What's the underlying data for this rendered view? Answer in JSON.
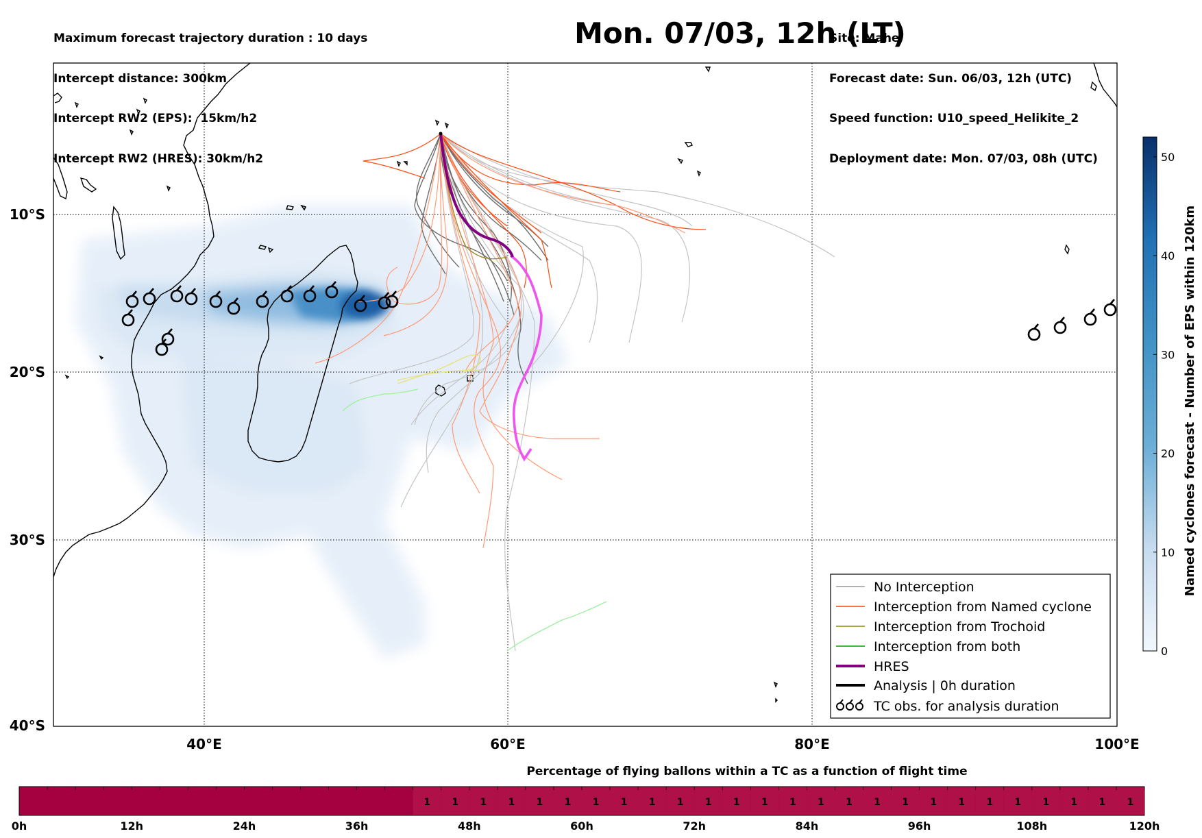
{
  "header_left": [
    "Maximum forecast trajectory duration : 10 days",
    "Intercept distance: 300km",
    "Intercept RW2 (EPS):  15km/h2",
    "Intercept RW2 (HRES): 30km/h2"
  ],
  "title": "Mon. 07/03, 12h (LT)",
  "header_right": [
    "Site: Mahe",
    "Forecast date: Sun. 06/03, 12h (UTC)",
    "Speed function: U10_speed_Helikite_2",
    "Deployment date: Mon. 07/03, 08h (UTC)"
  ],
  "map": {
    "lon_ticks": [
      "40°E",
      "60°E",
      "80°E",
      "100°E"
    ],
    "lat_ticks": [
      "10°S",
      "20°S",
      "30°S",
      "40°S"
    ],
    "grid": "dotted"
  },
  "legend": {
    "placement": "bottom-right",
    "items": [
      {
        "label": "No Interception",
        "color": "#9a9a9a"
      },
      {
        "label": "Interception from Named cyclone",
        "color": "#ff4500"
      },
      {
        "label": "Interception from Trochoid",
        "color": "#8b8b00"
      },
      {
        "label": "Interception from both",
        "color": "#00a000"
      },
      {
        "label": "HRES",
        "color": "#800080"
      },
      {
        "label": "Analysis | 0h duration",
        "color": "#000000"
      },
      {
        "label": "TC obs. for analysis duration",
        "icon": "cyclone-symbol-icon"
      }
    ]
  },
  "colorbar": {
    "label": "Named cyclones forecast - Number of EPS within 120km",
    "ticks": [
      "0",
      "10",
      "20",
      "30",
      "40",
      "50"
    ],
    "range": [
      0,
      52
    ],
    "colors": [
      "#deebf7",
      "#08306b"
    ]
  },
  "flight_bar": {
    "title": "Percentage of flying ballons within a TC as a function of flight time",
    "ticks": [
      "0h",
      "12h",
      "24h",
      "36h",
      "48h",
      "60h",
      "72h",
      "84h",
      "96h",
      "108h",
      "120h"
    ],
    "cell_values": [
      "1",
      "1",
      "1",
      "1",
      "1",
      "1",
      "1",
      "1",
      "1",
      "1",
      "1",
      "1",
      "1",
      "1",
      "1",
      "1",
      "1",
      "1",
      "1",
      "1",
      "1",
      "1",
      "1",
      "1",
      "1",
      "1"
    ],
    "colors": {
      "empty": "#a50040",
      "valued": "#b01048"
    }
  }
}
